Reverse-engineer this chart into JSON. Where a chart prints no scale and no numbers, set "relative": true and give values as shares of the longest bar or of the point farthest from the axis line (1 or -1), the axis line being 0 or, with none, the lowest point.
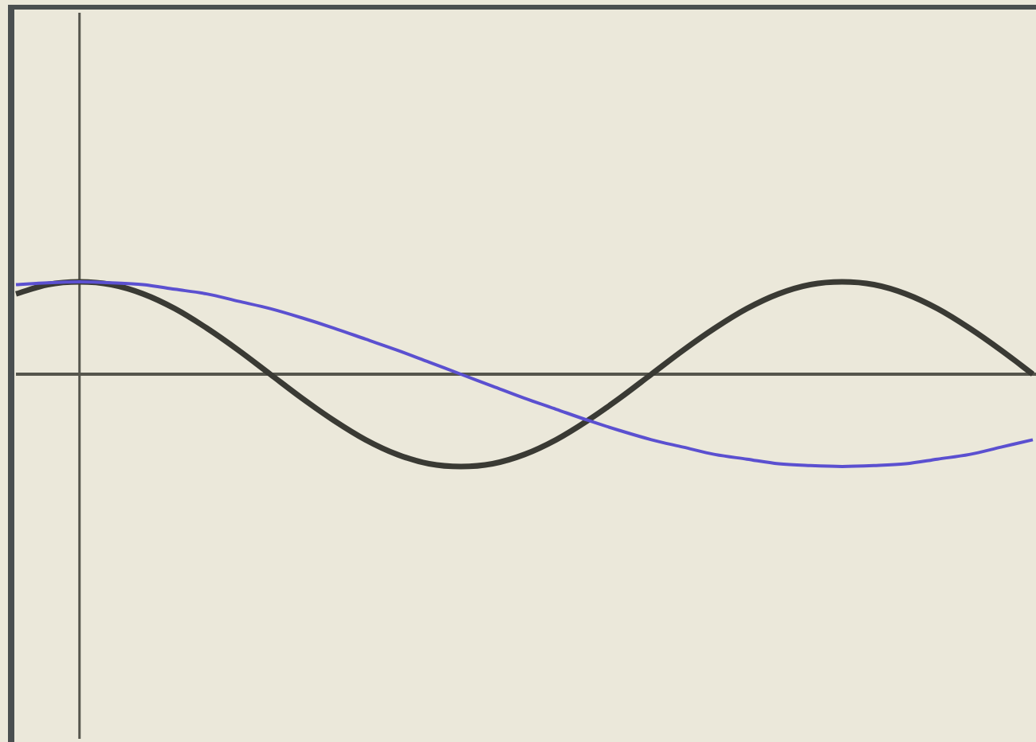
{
  "chart_data": {
    "type": "line",
    "relative": true,
    "categories": [
      null,
      null,
      null,
      null,
      null,
      null,
      null,
      null,
      null,
      null,
      null,
      null,
      null,
      null,
      null,
      null,
      null,
      null,
      null,
      null,
      null,
      null,
      null,
      null,
      null,
      null,
      null,
      null,
      null,
      null,
      null,
      null,
      null
    ],
    "marker": "none",
    "line_style": "solid",
    "series": [
      {
        "color": "#3a3a34",
        "values": [
          0.87,
          0.97,
          1,
          0.97,
          0.87,
          0.71,
          0.5,
          0.26,
          0,
          -0.26,
          -0.5,
          -0.71,
          -0.87,
          -0.97,
          -1,
          -0.97,
          -0.87,
          -0.71,
          -0.5,
          -0.26,
          0,
          0.26,
          0.5,
          0.71,
          0.87,
          0.97,
          1,
          0.97,
          0.87,
          0.71,
          0.5,
          0.26,
          0
        ]
      },
      {
        "color": "#5b50d0",
        "values": [
          0.97,
          0.99,
          1,
          0.99,
          0.97,
          0.92,
          0.87,
          0.79,
          0.71,
          0.61,
          0.5,
          0.38,
          0.26,
          0.13,
          0,
          -0.13,
          -0.26,
          -0.38,
          -0.5,
          -0.61,
          -0.71,
          -0.79,
          -0.87,
          -0.92,
          -0.97,
          -0.99,
          -1,
          -0.99,
          -0.97,
          -0.92,
          -0.87,
          -0.79,
          -0.71
        ]
      }
    ]
  }
}
